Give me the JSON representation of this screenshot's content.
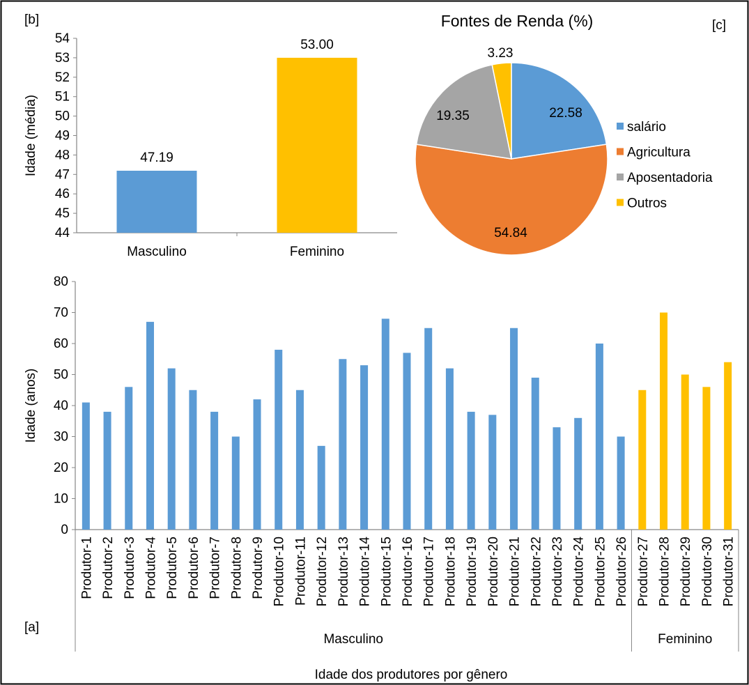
{
  "panel_labels": {
    "a": "[a]",
    "b": "[b]",
    "c": "[c]"
  },
  "chart_data": [
    {
      "id": "b",
      "type": "bar",
      "ylabel": "Idade (média)",
      "ylim": [
        44,
        54
      ],
      "yticks": [
        44,
        45,
        46,
        47,
        48,
        49,
        50,
        51,
        52,
        53,
        54
      ],
      "categories": [
        "Masculino",
        "Feminino"
      ],
      "values": [
        47.19,
        53.0
      ],
      "data_labels": [
        "47.19",
        "53.00"
      ],
      "colors": [
        "#5b9bd5",
        "#ffc000"
      ],
      "grid": false
    },
    {
      "id": "c",
      "type": "pie",
      "title": "Fontes de Renda (%)",
      "categories": [
        "salário",
        "Agricultura",
        "Aposentadoria",
        "Outros"
      ],
      "values": [
        22.58,
        54.84,
        19.35,
        3.23
      ],
      "data_labels": [
        "22.58",
        "54.84",
        "19.35",
        "3.23"
      ],
      "colors": [
        "#5b9bd5",
        "#ed7d31",
        "#a5a5a5",
        "#ffc000"
      ],
      "legend": "right"
    },
    {
      "id": "a",
      "type": "bar",
      "xlabel": "Idade dos produtores por gênero",
      "ylabel": "Idade (anos)",
      "ylim": [
        0,
        80
      ],
      "yticks": [
        0,
        10,
        20,
        30,
        40,
        50,
        60,
        70,
        80
      ],
      "categories": [
        "Produtor-1",
        "Produtor-2",
        "Produtor-3",
        "Produtor-4",
        "Produtor-5",
        "Produtor-6",
        "Produtor-7",
        "Produtor-8",
        "Produtor-9",
        "Produtor-10",
        "Produtor-11",
        "Produtor-12",
        "Produtor-13",
        "Produtor-14",
        "Produtor-15",
        "Produtor-16",
        "Produtor-17",
        "Produtor-18",
        "Produtor-19",
        "Produtor-20",
        "Produtor-21",
        "Produtor-22",
        "Produtor-23",
        "Produtor-24",
        "Produtor-25",
        "Produtor-26",
        "Produtor-27",
        "Produtor-28",
        "Produtor-29",
        "Produtor-30",
        "Produtor-31"
      ],
      "values": [
        41,
        38,
        46,
        67,
        52,
        45,
        38,
        30,
        42,
        58,
        45,
        27,
        55,
        53,
        68,
        57,
        65,
        52,
        38,
        37,
        65,
        49,
        33,
        36,
        60,
        30,
        45,
        70,
        50,
        46,
        54
      ],
      "groups": [
        {
          "name": "Masculino",
          "count": 26,
          "color": "#5b9bd5"
        },
        {
          "name": "Feminino",
          "count": 5,
          "color": "#ffc000"
        }
      ],
      "grid": false
    }
  ]
}
